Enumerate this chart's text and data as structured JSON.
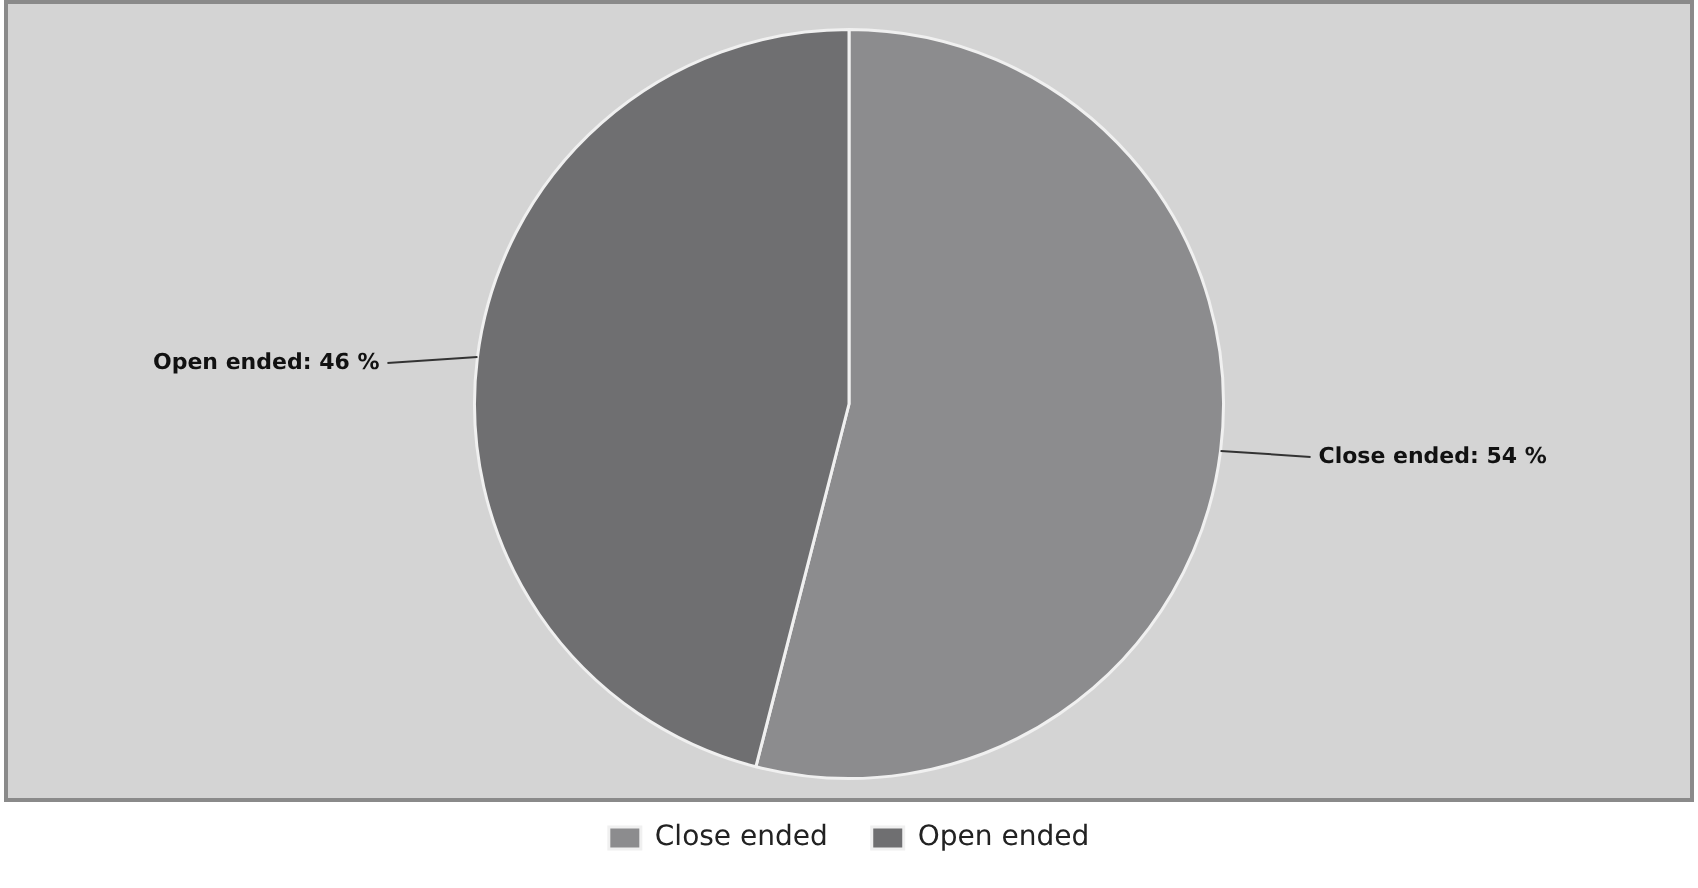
{
  "chart_data": {
    "type": "pie",
    "categories": [
      "Close ended",
      "Open ended"
    ],
    "values": [
      54,
      46
    ],
    "colors": [
      "#8c8c8e",
      "#6f6f71"
    ],
    "value_labels": [
      "Close ended: 54 %",
      "Open ended: 46 %"
    ],
    "legend": "bottom"
  }
}
